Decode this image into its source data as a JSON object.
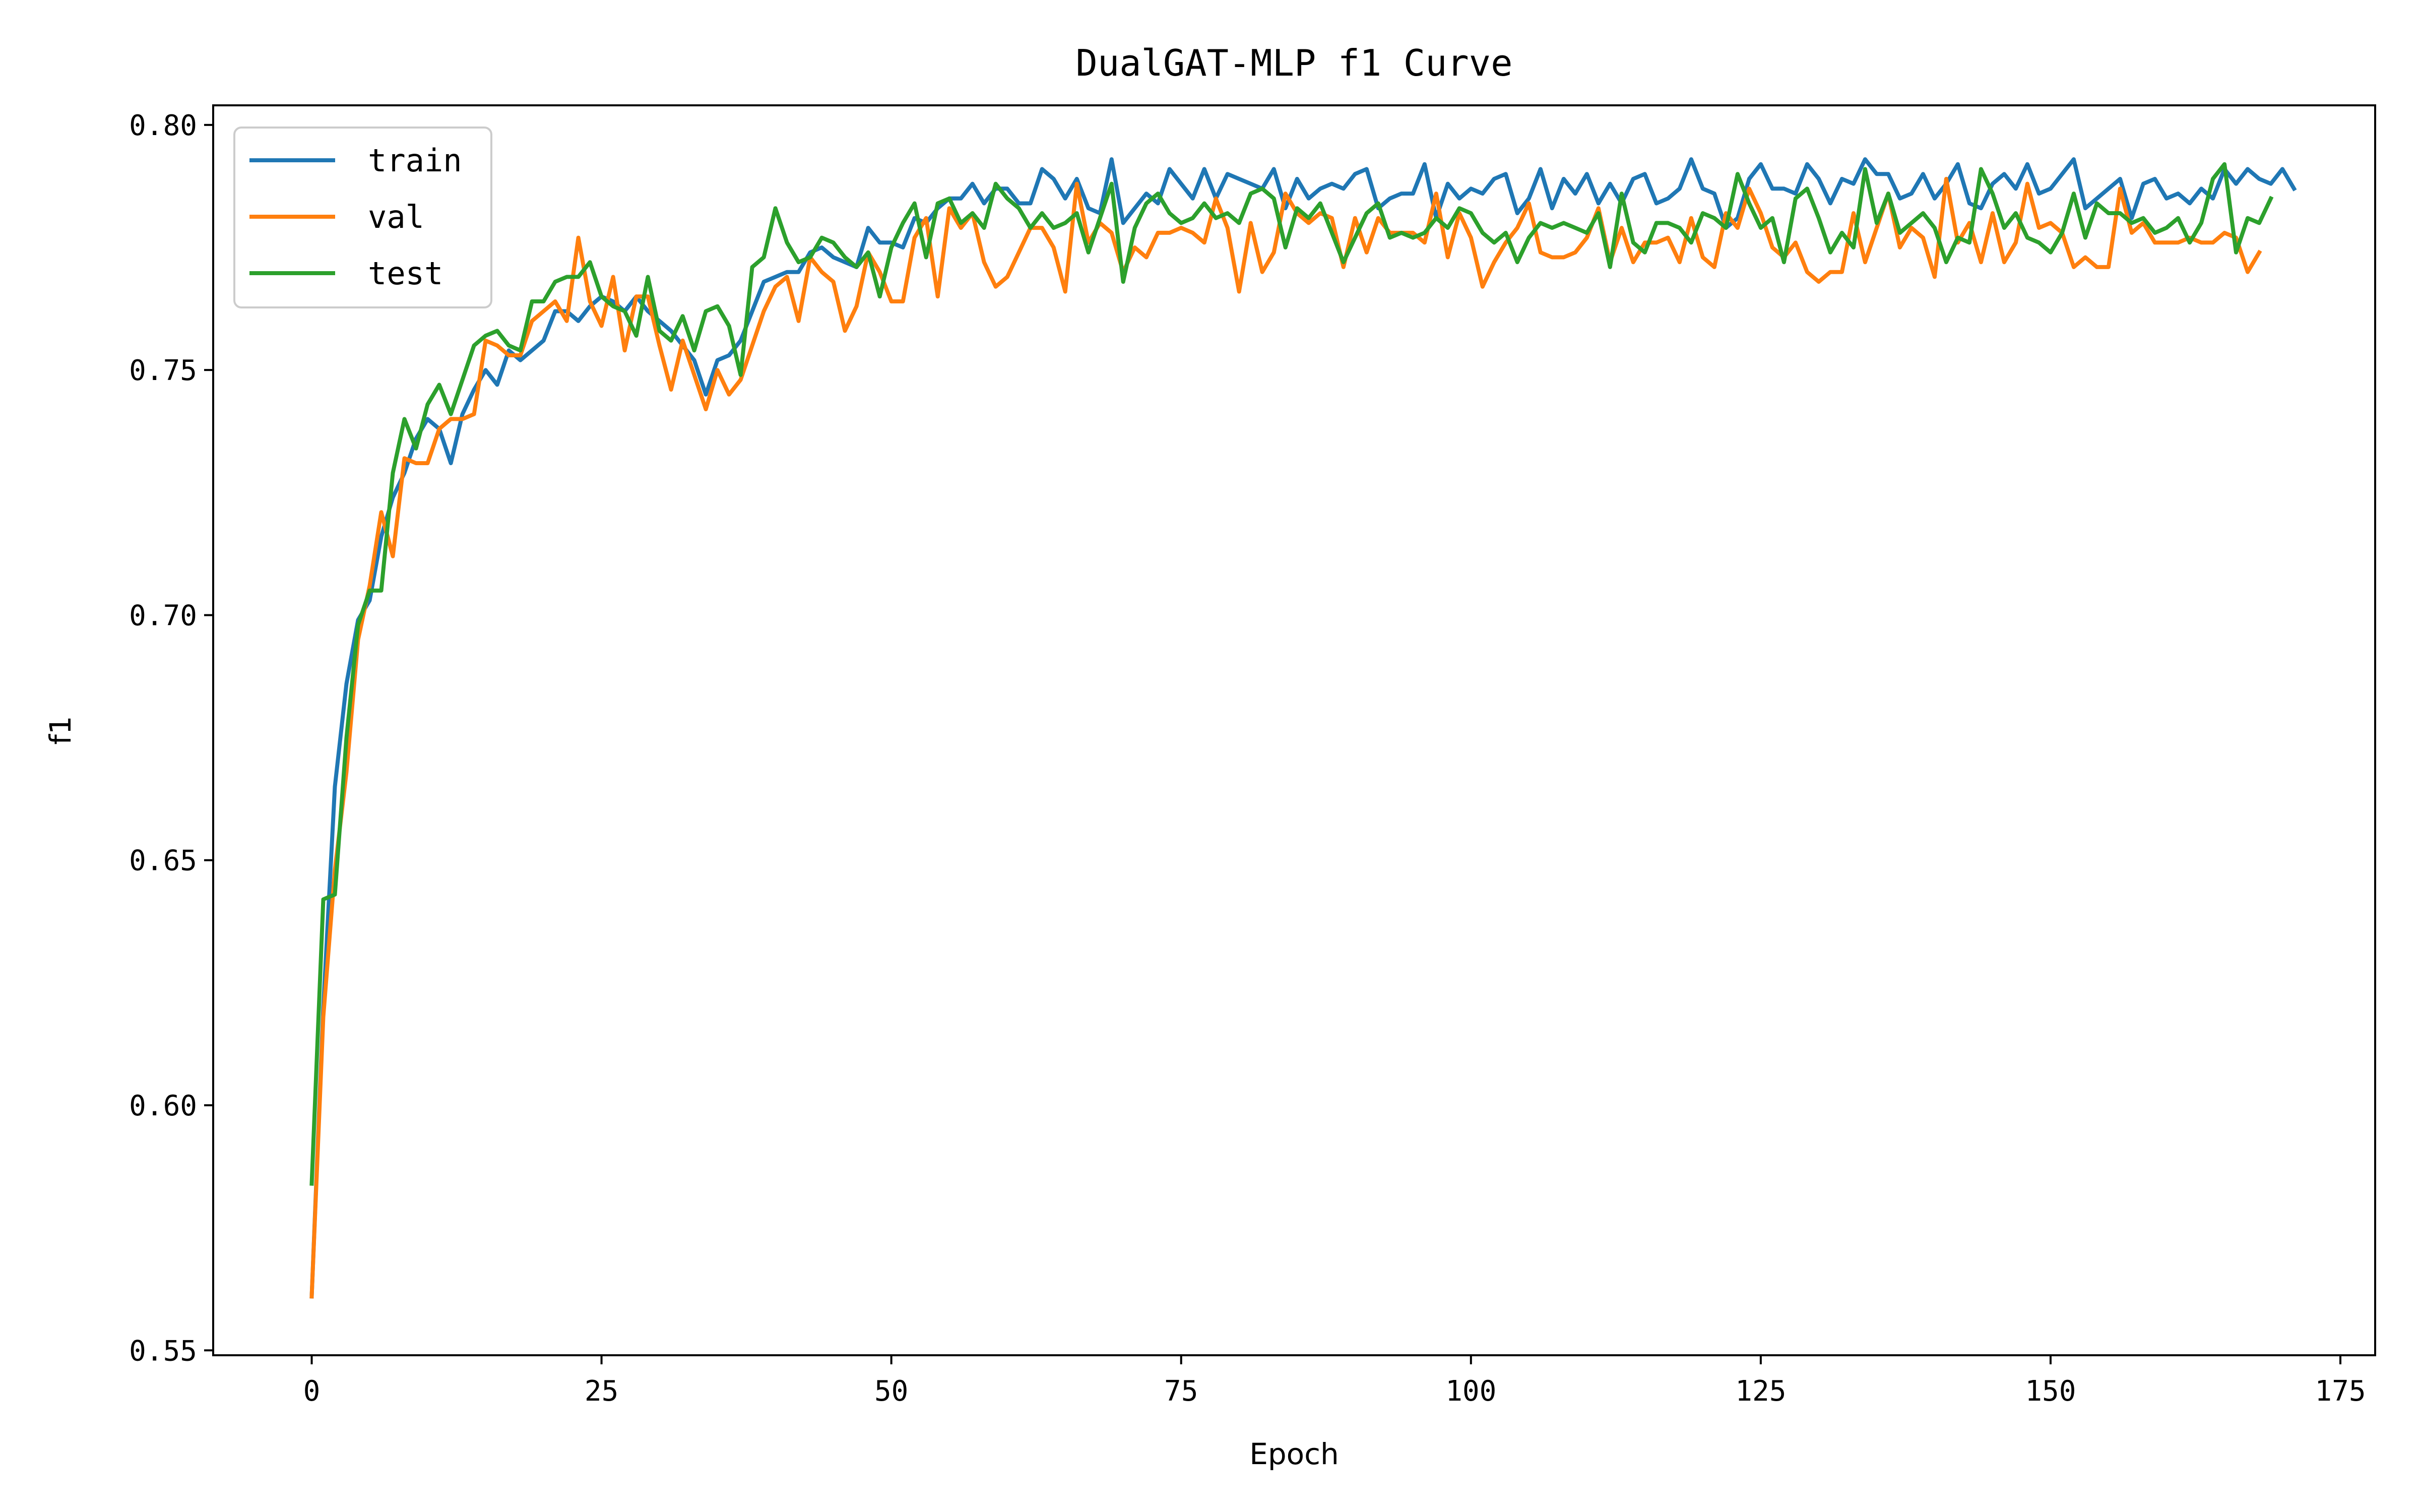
{
  "chart_data": {
    "type": "line",
    "title": "DualGAT-MLP f1 Curve",
    "xlabel": "Epoch",
    "ylabel": "f1",
    "xlim": [
      -8.5,
      178.0
    ],
    "ylim": [
      0.549,
      0.804
    ],
    "xticks": [
      0,
      25,
      50,
      75,
      100,
      125,
      150,
      175
    ],
    "xtick_labels": [
      "0",
      "25",
      "50",
      "75",
      "100",
      "125",
      "150",
      "175"
    ],
    "yticks": [
      0.55,
      0.6,
      0.65,
      0.7,
      0.75,
      0.8
    ],
    "ytick_labels": [
      "0.55",
      "0.60",
      "0.65",
      "0.70",
      "0.75",
      "0.80"
    ],
    "grid": false,
    "legend": "top-left",
    "x_start": 0,
    "series": [
      {
        "name": "train",
        "color": "#1f77b4",
        "values": [
          0.561,
          0.62,
          0.665,
          0.686,
          0.699,
          0.703,
          0.716,
          0.724,
          0.729,
          0.736,
          0.74,
          0.738,
          0.731,
          0.741,
          0.746,
          0.75,
          0.747,
          0.754,
          0.752,
          0.754,
          0.756,
          0.762,
          0.762,
          0.76,
          0.763,
          0.765,
          0.764,
          0.762,
          0.765,
          0.762,
          0.76,
          0.758,
          0.755,
          0.752,
          0.745,
          0.752,
          0.753,
          0.756,
          0.762,
          0.768,
          0.769,
          0.77,
          0.77,
          0.774,
          0.775,
          0.773,
          0.772,
          0.771,
          0.779,
          0.776,
          0.776,
          0.775,
          0.781,
          0.78,
          0.783,
          0.785,
          0.785,
          0.788,
          0.784,
          0.787,
          0.787,
          0.784,
          0.784,
          0.791,
          0.789,
          0.785,
          0.789,
          0.783,
          0.782,
          0.793,
          0.78,
          0.783,
          0.786,
          0.784,
          0.791,
          0.788,
          0.785,
          0.791,
          0.785,
          0.79,
          0.789,
          0.788,
          0.787,
          0.791,
          0.783,
          0.789,
          0.785,
          0.787,
          0.788,
          0.787,
          0.79,
          0.791,
          0.783,
          0.785,
          0.786,
          0.786,
          0.792,
          0.781,
          0.788,
          0.785,
          0.787,
          0.786,
          0.789,
          0.79,
          0.782,
          0.785,
          0.791,
          0.783,
          0.789,
          0.786,
          0.79,
          0.784,
          0.788,
          0.784,
          0.789,
          0.79,
          0.784,
          0.785,
          0.787,
          0.793,
          0.787,
          0.786,
          0.779,
          0.781,
          0.789,
          0.792,
          0.787,
          0.787,
          0.786,
          0.792,
          0.789,
          0.784,
          0.789,
          0.788,
          0.793,
          0.79,
          0.79,
          0.785,
          0.786,
          0.79,
          0.785,
          0.788,
          0.792,
          0.784,
          0.783,
          0.788,
          0.79,
          0.787,
          0.792,
          0.786,
          0.787,
          0.79,
          0.793,
          0.783,
          0.785,
          0.787,
          0.789,
          0.781,
          0.788,
          0.789,
          0.785,
          0.786,
          0.784,
          0.787,
          0.785,
          0.791,
          0.788,
          0.791,
          0.789,
          0.788,
          0.791,
          0.787
        ]
      },
      {
        "name": "val",
        "color": "#ff7f0e",
        "values": [
          0.561,
          0.618,
          0.648,
          0.668,
          0.695,
          0.706,
          0.721,
          0.712,
          0.732,
          0.731,
          0.731,
          0.738,
          0.74,
          0.74,
          0.741,
          0.756,
          0.755,
          0.753,
          0.753,
          0.76,
          0.762,
          0.764,
          0.76,
          0.777,
          0.764,
          0.759,
          0.769,
          0.754,
          0.765,
          0.765,
          0.755,
          0.746,
          0.756,
          0.749,
          0.742,
          0.75,
          0.745,
          0.748,
          0.755,
          0.762,
          0.767,
          0.769,
          0.76,
          0.773,
          0.77,
          0.768,
          0.758,
          0.763,
          0.774,
          0.77,
          0.764,
          0.764,
          0.777,
          0.781,
          0.765,
          0.783,
          0.779,
          0.782,
          0.772,
          0.767,
          0.769,
          0.774,
          0.779,
          0.779,
          0.775,
          0.766,
          0.788,
          0.776,
          0.78,
          0.778,
          0.77,
          0.775,
          0.773,
          0.778,
          0.778,
          0.779,
          0.778,
          0.776,
          0.785,
          0.779,
          0.766,
          0.78,
          0.77,
          0.774,
          0.786,
          0.782,
          0.78,
          0.782,
          0.781,
          0.771,
          0.781,
          0.774,
          0.781,
          0.778,
          0.778,
          0.778,
          0.776,
          0.786,
          0.773,
          0.782,
          0.777,
          0.767,
          0.772,
          0.776,
          0.779,
          0.784,
          0.774,
          0.773,
          0.773,
          0.774,
          0.777,
          0.783,
          0.772,
          0.779,
          0.772,
          0.776,
          0.776,
          0.777,
          0.772,
          0.781,
          0.773,
          0.771,
          0.782,
          0.779,
          0.787,
          0.782,
          0.775,
          0.773,
          0.776,
          0.77,
          0.768,
          0.77,
          0.77,
          0.782,
          0.772,
          0.779,
          0.786,
          0.775,
          0.779,
          0.777,
          0.769,
          0.789,
          0.776,
          0.78,
          0.772,
          0.782,
          0.772,
          0.776,
          0.788,
          0.779,
          0.78,
          0.778,
          0.771,
          0.773,
          0.771,
          0.771,
          0.787,
          0.778,
          0.78,
          0.776,
          0.776,
          0.776,
          0.777,
          0.776,
          0.776,
          0.778,
          0.777,
          0.77,
          0.774
        ]
      },
      {
        "name": "test",
        "color": "#2ca02c",
        "values": [
          0.584,
          0.642,
          0.643,
          0.675,
          0.698,
          0.705,
          0.705,
          0.729,
          0.74,
          0.734,
          0.743,
          0.747,
          0.741,
          0.748,
          0.755,
          0.757,
          0.758,
          0.755,
          0.754,
          0.764,
          0.764,
          0.768,
          0.769,
          0.769,
          0.772,
          0.765,
          0.763,
          0.762,
          0.757,
          0.769,
          0.758,
          0.756,
          0.761,
          0.754,
          0.762,
          0.763,
          0.759,
          0.749,
          0.771,
          0.773,
          0.783,
          0.776,
          0.772,
          0.773,
          0.777,
          0.776,
          0.773,
          0.771,
          0.774,
          0.765,
          0.775,
          0.78,
          0.784,
          0.773,
          0.784,
          0.785,
          0.78,
          0.782,
          0.779,
          0.788,
          0.785,
          0.783,
          0.779,
          0.782,
          0.779,
          0.78,
          0.782,
          0.774,
          0.781,
          0.788,
          0.768,
          0.779,
          0.784,
          0.786,
          0.782,
          0.78,
          0.781,
          0.784,
          0.781,
          0.782,
          0.78,
          0.786,
          0.787,
          0.785,
          0.775,
          0.783,
          0.781,
          0.784,
          0.778,
          0.772,
          0.777,
          0.782,
          0.784,
          0.777,
          0.778,
          0.777,
          0.778,
          0.781,
          0.779,
          0.783,
          0.782,
          0.778,
          0.776,
          0.778,
          0.772,
          0.777,
          0.78,
          0.779,
          0.78,
          0.779,
          0.778,
          0.782,
          0.771,
          0.786,
          0.776,
          0.774,
          0.78,
          0.78,
          0.779,
          0.776,
          0.782,
          0.781,
          0.779,
          0.79,
          0.784,
          0.779,
          0.781,
          0.772,
          0.785,
          0.787,
          0.781,
          0.774,
          0.778,
          0.775,
          0.791,
          0.78,
          0.786,
          0.778,
          0.78,
          0.782,
          0.779,
          0.772,
          0.777,
          0.776,
          0.791,
          0.786,
          0.779,
          0.782,
          0.777,
          0.776,
          0.774,
          0.778,
          0.786,
          0.777,
          0.784,
          0.782,
          0.782,
          0.78,
          0.781,
          0.778,
          0.779,
          0.781,
          0.776,
          0.78,
          0.789,
          0.792,
          0.774,
          0.781,
          0.78,
          0.785
        ]
      }
    ]
  }
}
